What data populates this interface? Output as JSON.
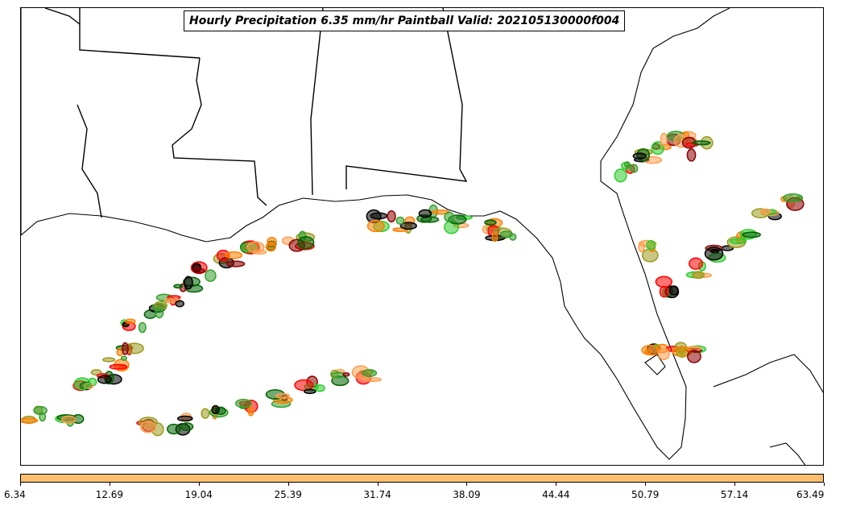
{
  "title": "Hourly Precipitation 6.35 mm/hr Paintball Valid: 202105130000f004",
  "threshold_mm_per_hr": 6.35,
  "valid_time": "202105130000",
  "forecast_hour": "f004",
  "colorbar": {
    "color": "#fdbf6f",
    "ticks": [
      "6.34",
      "12.69",
      "19.04",
      "25.39",
      "31.74",
      "38.09",
      "44.44",
      "50.79",
      "57.14",
      "63.49"
    ]
  },
  "member_colors": [
    "#ff0000",
    "#ff7f00",
    "#33a02c",
    "#006400",
    "#9a9a1f",
    "#8b0000",
    "#2ecc2e",
    "#ff9f50",
    "#000000"
  ],
  "map": {
    "region": "Gulf Coast / Florida",
    "basemap": "state boundaries and coastlines",
    "background": "#ffffff",
    "line_color": "#000000"
  }
}
